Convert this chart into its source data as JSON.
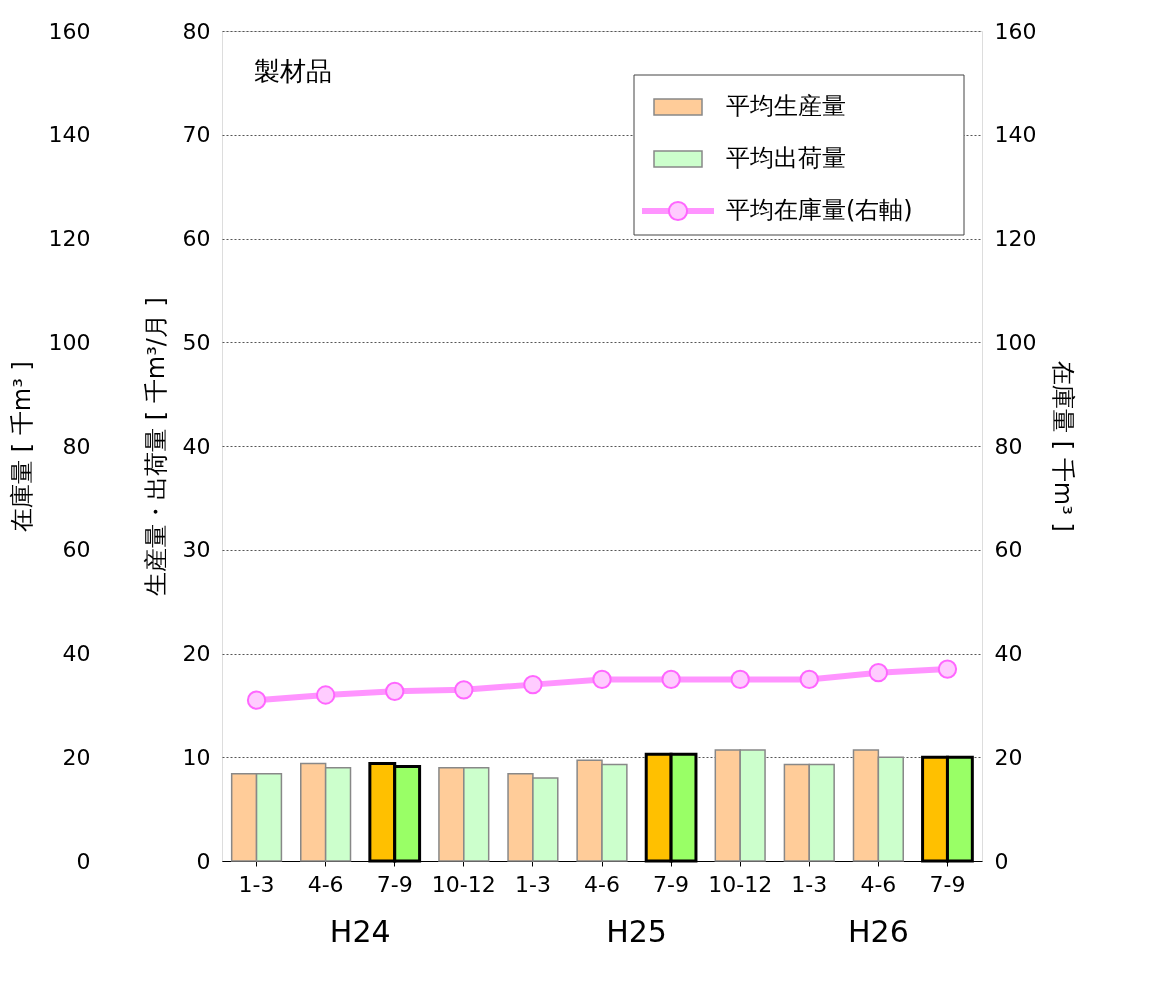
{
  "chart_data": {
    "type": "bar",
    "title": "製材品",
    "ylabel": "生産量・出荷量 [ 千m³/月 ]",
    "y2label": "在庫量 [ 千m³ ]",
    "y3label": "在庫量 [ 千m³ ]",
    "categories": [
      "1-3",
      "4-6",
      "7-9",
      "10-12",
      "1-3",
      "4-6",
      "7-9",
      "10-12",
      "1-3",
      "4-6",
      "7-9"
    ],
    "series": [
      {
        "name": "平均生産量",
        "color": "#ffcc99",
        "colors": [
          "#ffcc99",
          "#ffcc99",
          "#ffc000",
          "#ffcc99",
          "#ffcc99",
          "#ffcc99",
          "#ffc000",
          "#ffcc99",
          "#ffcc99",
          "#ffcc99",
          "#ffc000"
        ],
        "values": [
          8.4,
          9.4,
          9.4,
          9.0,
          8.4,
          9.7,
          10.3,
          10.7,
          9.3,
          10.7,
          10.0
        ]
      },
      {
        "name": "平均出荷量",
        "color": "#ccffcc",
        "colors": [
          "#ccffcc",
          "#ccffcc",
          "#99ff66",
          "#ccffcc",
          "#ccffcc",
          "#ccffcc",
          "#99ff66",
          "#ccffcc",
          "#ccffcc",
          "#ccffcc",
          "#99ff66"
        ],
        "values": [
          8.4,
          9.0,
          9.1,
          9.0,
          8.0,
          9.3,
          10.3,
          10.7,
          9.3,
          10.0,
          10.0
        ]
      },
      {
        "name": "平均在庫量(右軸)",
        "type": "line",
        "axis": "y2",
        "color": "#ff66ff",
        "values": [
          31.0,
          32.0,
          32.7,
          33.0,
          34.0,
          35.0,
          35.0,
          35.0,
          35.0,
          36.3,
          37.0
        ]
      }
    ],
    "ylim": [
      0,
      80
    ],
    "yticks": [
      0,
      10,
      20,
      30,
      40,
      50,
      60,
      70,
      80
    ],
    "y2lim": [
      0,
      160
    ],
    "y2ticks": [
      0,
      20,
      40,
      60,
      80,
      100,
      120,
      140,
      160
    ],
    "y3lim": [
      0,
      160
    ],
    "y3ticks": [
      0,
      20,
      40,
      60,
      80,
      100,
      120,
      140,
      160
    ],
    "annotations": [
      "H24",
      "H25",
      "H26"
    ],
    "grid": "y",
    "legend": "top right",
    "marker": "circle",
    "line_style": "solid"
  }
}
